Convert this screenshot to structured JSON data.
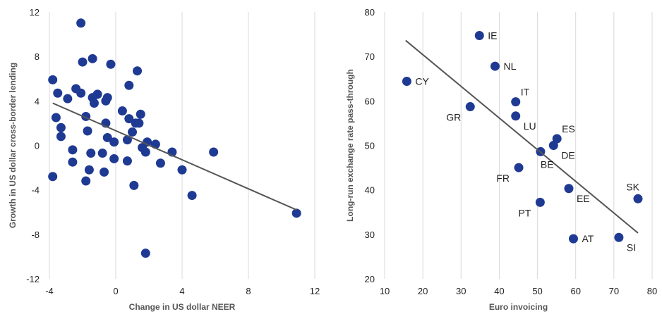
{
  "chart_data": [
    {
      "type": "scatter",
      "xlabel": "Change in US dollar NEER",
      "ylabel": "Growth in US dollar cross-border lending",
      "xlim": [
        -4,
        12
      ],
      "ylim": [
        -12,
        12
      ],
      "xticks": [
        "-4",
        "0",
        "4",
        "8",
        "12"
      ],
      "yticks": [
        "-12",
        "-8",
        "-4",
        "0",
        "4",
        "8",
        "12"
      ],
      "grid": "vertical",
      "marker_color": "#1f3a93",
      "line_color": "#555555",
      "trendline": {
        "x": [
          -3.8,
          10.9
        ],
        "y": [
          3.8,
          -5.8
        ]
      },
      "points": [
        {
          "x": -2.1,
          "y": 11.0
        },
        {
          "x": -1.4,
          "y": 7.8
        },
        {
          "x": -2.0,
          "y": 7.5
        },
        {
          "x": -0.3,
          "y": 7.3
        },
        {
          "x": 1.3,
          "y": 6.7
        },
        {
          "x": -3.8,
          "y": 5.9
        },
        {
          "x": 0.8,
          "y": 5.4
        },
        {
          "x": -2.4,
          "y": 5.1
        },
        {
          "x": -3.5,
          "y": 4.7
        },
        {
          "x": -2.1,
          "y": 4.7
        },
        {
          "x": -1.1,
          "y": 4.6
        },
        {
          "x": -0.5,
          "y": 4.3
        },
        {
          "x": -2.9,
          "y": 4.2
        },
        {
          "x": -1.4,
          "y": 4.3
        },
        {
          "x": -0.6,
          "y": 4.0
        },
        {
          "x": -1.3,
          "y": 3.8
        },
        {
          "x": 0.4,
          "y": 3.1
        },
        {
          "x": 1.5,
          "y": 2.8
        },
        {
          "x": -1.8,
          "y": 2.6
        },
        {
          "x": -3.6,
          "y": 2.5
        },
        {
          "x": 0.8,
          "y": 2.4
        },
        {
          "x": -0.6,
          "y": 2.0
        },
        {
          "x": 1.2,
          "y": 2.0
        },
        {
          "x": 1.4,
          "y": 2.0
        },
        {
          "x": -3.3,
          "y": 1.6
        },
        {
          "x": -1.7,
          "y": 1.3
        },
        {
          "x": 1.0,
          "y": 1.2
        },
        {
          "x": -3.3,
          "y": 0.8
        },
        {
          "x": -0.5,
          "y": 0.7
        },
        {
          "x": 0.7,
          "y": 0.5
        },
        {
          "x": -0.1,
          "y": 0.3
        },
        {
          "x": 1.9,
          "y": 0.3
        },
        {
          "x": 2.4,
          "y": 0.1
        },
        {
          "x": 1.6,
          "y": -0.2
        },
        {
          "x": -2.6,
          "y": -0.4
        },
        {
          "x": 1.8,
          "y": -0.6
        },
        {
          "x": 3.4,
          "y": -0.6
        },
        {
          "x": 5.9,
          "y": -0.6
        },
        {
          "x": -1.5,
          "y": -0.7
        },
        {
          "x": -0.8,
          "y": -0.7
        },
        {
          "x": -0.1,
          "y": -1.2
        },
        {
          "x": 0.7,
          "y": -1.4
        },
        {
          "x": -2.6,
          "y": -1.5
        },
        {
          "x": 2.7,
          "y": -1.6
        },
        {
          "x": -1.6,
          "y": -2.2
        },
        {
          "x": -0.7,
          "y": -2.4
        },
        {
          "x": 4.0,
          "y": -2.2
        },
        {
          "x": -3.8,
          "y": -2.8
        },
        {
          "x": -1.8,
          "y": -3.2
        },
        {
          "x": 1.1,
          "y": -3.6
        },
        {
          "x": 4.6,
          "y": -4.5
        },
        {
          "x": 10.9,
          "y": -6.1
        },
        {
          "x": 1.8,
          "y": -9.7
        }
      ]
    },
    {
      "type": "scatter",
      "xlabel": "Euro invoicing",
      "ylabel": "Long-run exchange rate pass-through",
      "xlim": [
        10,
        80
      ],
      "ylim": [
        20,
        80
      ],
      "xticks": [
        "10",
        "20",
        "30",
        "40",
        "50",
        "60",
        "70",
        "80"
      ],
      "yticks": [
        "20",
        "30",
        "40",
        "50",
        "60",
        "70",
        "80"
      ],
      "grid": "vertical",
      "marker_color": "#1f3a93",
      "line_color": "#555555",
      "trendline": {
        "x": [
          15.5,
          76.3
        ],
        "y": [
          73.6,
          30.3
        ]
      },
      "points": [
        {
          "label": "IE",
          "x": 34.8,
          "y": 74.7,
          "anchor": "right"
        },
        {
          "label": "NL",
          "x": 38.9,
          "y": 67.8,
          "anchor": "right"
        },
        {
          "label": "CY",
          "x": 15.8,
          "y": 64.4,
          "anchor": "right"
        },
        {
          "label": "IT",
          "x": 44.3,
          "y": 59.8,
          "anchor": "above-right"
        },
        {
          "label": "GR",
          "x": 32.4,
          "y": 58.7,
          "anchor": "below-left"
        },
        {
          "label": "LU",
          "x": 44.3,
          "y": 56.6,
          "anchor": "below-right"
        },
        {
          "label": "ES",
          "x": 55.1,
          "y": 51.5,
          "anchor": "above-right"
        },
        {
          "label": "DE",
          "x": 54.2,
          "y": 50.0,
          "anchor": "below-right"
        },
        {
          "label": "BE",
          "x": 50.8,
          "y": 48.6,
          "anchor": "below"
        },
        {
          "label": "FR",
          "x": 45.1,
          "y": 45.0,
          "anchor": "below-left"
        },
        {
          "label": "SK",
          "x": 76.3,
          "y": 38.0,
          "anchor": "above-left"
        },
        {
          "label": "EE",
          "x": 58.2,
          "y": 40.3,
          "anchor": "below-right"
        },
        {
          "label": "PT",
          "x": 50.7,
          "y": 37.2,
          "anchor": "below-left"
        },
        {
          "label": "AT",
          "x": 59.4,
          "y": 29.0,
          "anchor": "right"
        },
        {
          "label": "SI",
          "x": 71.3,
          "y": 29.3,
          "anchor": "below-right"
        }
      ]
    }
  ]
}
